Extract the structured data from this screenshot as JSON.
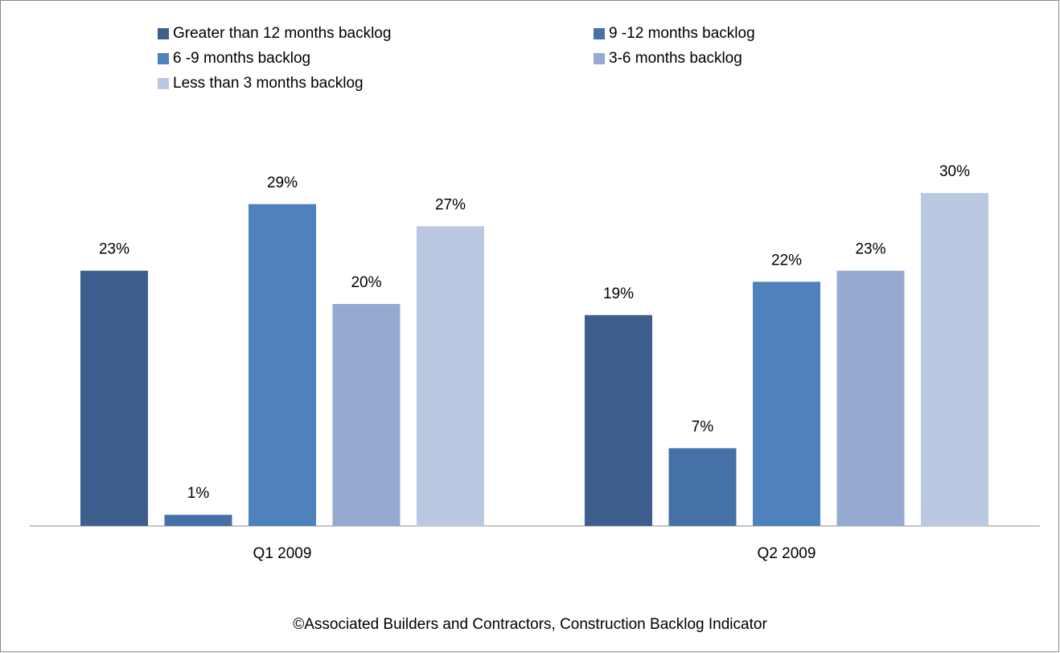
{
  "chart_data": {
    "type": "bar",
    "categories": [
      "Q1 2009",
      "Q2 2009"
    ],
    "series": [
      {
        "name": "Greater than 12 months backlog",
        "color": "#3c5f8e",
        "values": [
          23,
          19
        ],
        "value_labels": [
          "23%",
          "19%"
        ]
      },
      {
        "name": "9 -12 months backlog",
        "color": "#4571a6",
        "values": [
          1,
          7
        ],
        "value_labels": [
          "1%",
          "7%"
        ]
      },
      {
        "name": "6 -9 months backlog",
        "color": "#4f81bd",
        "values": [
          29,
          22
        ],
        "value_labels": [
          "29%",
          "22%"
        ]
      },
      {
        "name": "3-6 months backlog",
        "color": "#95a9d1",
        "values": [
          20,
          23
        ],
        "value_labels": [
          "20%",
          "23%"
        ]
      },
      {
        "name": "Less than 3 months backlog",
        "color": "#bbc8e2",
        "values": [
          27,
          30
        ],
        "value_labels": [
          "27%",
          "30%"
        ]
      }
    ],
    "source": "©Associated Builders and Contractors, Construction Backlog Indicator"
  }
}
